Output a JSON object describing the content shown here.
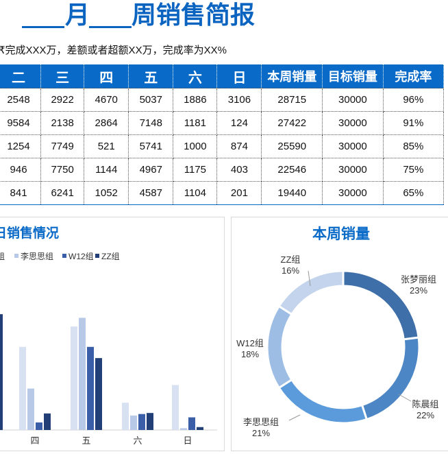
{
  "header": {
    "title_month": "月",
    "title_week": "周销售简报",
    "subtitle": "₹完成XXX万，差额或者超额XX万，完成率为XX%"
  },
  "table": {
    "columns": [
      "二",
      "三",
      "四",
      "五",
      "六",
      "日",
      "本周销量",
      "目标销量",
      "完成率"
    ],
    "rows": [
      [
        "2548",
        "2922",
        "4670",
        "5037",
        "1886",
        "3106",
        "28715",
        "30000",
        "96%"
      ],
      [
        "9584",
        "2138",
        "2864",
        "7148",
        "1181",
        "124",
        "27422",
        "30000",
        "91%"
      ],
      [
        "1254",
        "7749",
        "521",
        "5741",
        "1000",
        "874",
        "25590",
        "30000",
        "85%"
      ],
      [
        "946",
        "7750",
        "1144",
        "4967",
        "1175",
        "403",
        "22546",
        "30000",
        "75%"
      ],
      [
        "841",
        "6241",
        "1052",
        "4587",
        "1104",
        "201",
        "19440",
        "30000",
        "65%"
      ]
    ]
  },
  "colors": {
    "header_blue": "#0a6ac8",
    "series": [
      "#d7e1f2",
      "#b7c9e7",
      "#3a5ea8",
      "#223f78"
    ],
    "donut": [
      "#3e6fa8",
      "#4c86c4",
      "#5b9bdb",
      "#9dbde5",
      "#c3d4ec"
    ]
  },
  "chart_data": [
    {
      "type": "bar",
      "title": "日销售情况",
      "categories": [
        "四",
        "五",
        "六",
        "日"
      ],
      "series": [
        {
          "name": "",
          "values": [
            5741,
            7148,
            1886,
            3106
          ]
        },
        {
          "name": "李思思组",
          "values": [
            2864,
            7749,
            1000,
            124
          ]
        },
        {
          "name": "W12组",
          "values": [
            521,
            5741,
            1104,
            874
          ]
        },
        {
          "name": "ZZ组",
          "values": [
            1144,
            4967,
            1175,
            201
          ]
        }
      ],
      "legend": [
        "组",
        "李思思组",
        "W12组",
        "ZZ组"
      ],
      "partial_series_values": [
        8000
      ],
      "ylim": [
        0,
        9000
      ],
      "legend_position": "top"
    },
    {
      "type": "pie",
      "title": "本周销量",
      "donut": true,
      "labels": [
        "张梦丽组",
        "陈晨组",
        "李思思组",
        "W12组",
        "ZZ组"
      ],
      "values": [
        23,
        22,
        21,
        18,
        16
      ],
      "value_labels": [
        "23%",
        "22%",
        "21%",
        "18%",
        "16%"
      ]
    }
  ]
}
